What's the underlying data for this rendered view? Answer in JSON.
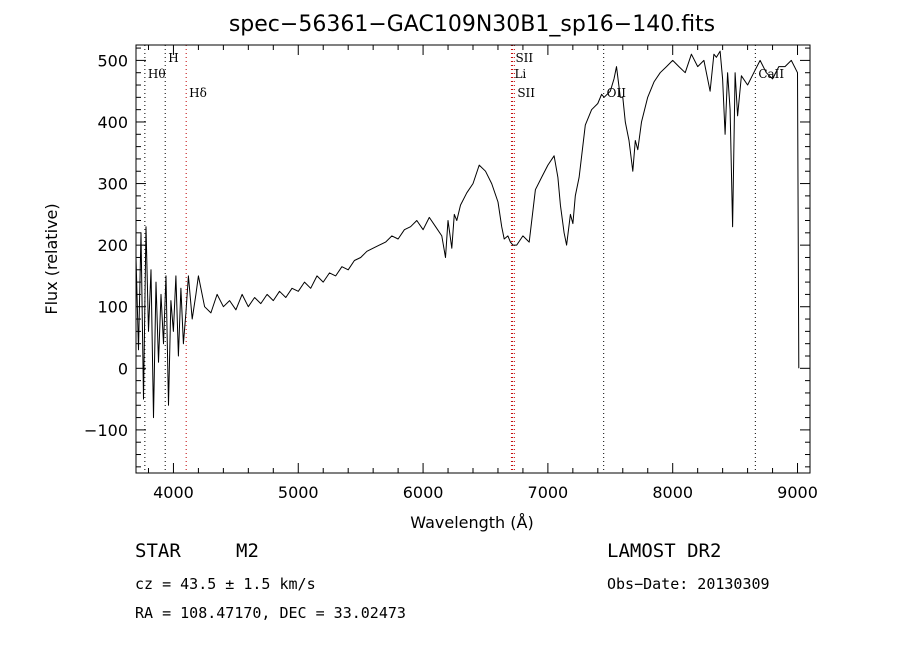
{
  "chart_data": {
    "type": "line",
    "title": "spec−56361−GAC109N30B1_sp16−140.fits",
    "xlabel": "Wavelength (Å)",
    "ylabel": "Flux (relative)",
    "xlim": [
      3700,
      9100
    ],
    "ylim": [
      -170,
      525
    ],
    "x_ticks": [
      {
        "value": 4000,
        "label": "4000"
      },
      {
        "value": 5000,
        "label": "5000"
      },
      {
        "value": 6000,
        "label": "6000"
      },
      {
        "value": 7000,
        "label": "7000"
      },
      {
        "value": 8000,
        "label": "8000"
      },
      {
        "value": 9000,
        "label": "9000"
      }
    ],
    "y_ticks": [
      {
        "value": -100,
        "label": "−100"
      },
      {
        "value": 0,
        "label": "0"
      },
      {
        "value": 100,
        "label": "100"
      },
      {
        "value": 200,
        "label": "200"
      },
      {
        "value": 300,
        "label": "300"
      },
      {
        "value": 400,
        "label": "400"
      },
      {
        "value": 500,
        "label": "500"
      }
    ],
    "grid": false,
    "series": [
      {
        "color": "#000000",
        "x": [
          3700,
          3720,
          3740,
          3760,
          3780,
          3800,
          3820,
          3840,
          3860,
          3880,
          3900,
          3920,
          3940,
          3960,
          3980,
          4000,
          4020,
          4040,
          4060,
          4080,
          4100,
          4120,
          4150,
          4180,
          4200,
          4250,
          4300,
          4350,
          4400,
          4450,
          4500,
          4550,
          4600,
          4650,
          4700,
          4750,
          4800,
          4850,
          4900,
          4950,
          5000,
          5050,
          5100,
          5150,
          5200,
          5250,
          5300,
          5350,
          5400,
          5450,
          5500,
          5550,
          5600,
          5650,
          5700,
          5750,
          5800,
          5850,
          5900,
          5950,
          6000,
          6050,
          6100,
          6150,
          6180,
          6200,
          6230,
          6250,
          6270,
          6300,
          6350,
          6400,
          6450,
          6500,
          6550,
          6600,
          6630,
          6650,
          6680,
          6700,
          6720,
          6750,
          6800,
          6850,
          6900,
          6950,
          7000,
          7050,
          7080,
          7100,
          7130,
          7150,
          7180,
          7200,
          7220,
          7250,
          7300,
          7350,
          7400,
          7430,
          7450,
          7500,
          7530,
          7550,
          7580,
          7600,
          7620,
          7650,
          7680,
          7700,
          7720,
          7750,
          7800,
          7850,
          7900,
          7950,
          8000,
          8050,
          8100,
          8150,
          8200,
          8250,
          8300,
          8330,
          8350,
          8380,
          8400,
          8420,
          8440,
          8460,
          8480,
          8500,
          8520,
          8550,
          8600,
          8650,
          8700,
          8750,
          8800,
          8850,
          8900,
          8950,
          9000,
          9010
        ],
        "y": [
          180,
          30,
          220,
          -50,
          230,
          60,
          160,
          -80,
          140,
          10,
          120,
          40,
          150,
          -60,
          110,
          60,
          150,
          20,
          130,
          40,
          90,
          150,
          80,
          120,
          150,
          100,
          90,
          120,
          100,
          110,
          95,
          120,
          100,
          115,
          105,
          120,
          110,
          125,
          115,
          130,
          125,
          140,
          130,
          150,
          140,
          155,
          150,
          165,
          160,
          175,
          180,
          190,
          195,
          200,
          205,
          215,
          210,
          225,
          230,
          240,
          225,
          245,
          230,
          215,
          180,
          240,
          195,
          250,
          240,
          265,
          285,
          300,
          330,
          320,
          300,
          270,
          230,
          210,
          215,
          205,
          200,
          200,
          215,
          205,
          290,
          310,
          330,
          345,
          310,
          265,
          220,
          200,
          250,
          235,
          280,
          310,
          395,
          420,
          430,
          445,
          440,
          450,
          470,
          490,
          440,
          440,
          400,
          370,
          320,
          370,
          355,
          400,
          440,
          465,
          480,
          490,
          500,
          490,
          480,
          510,
          490,
          500,
          450,
          510,
          505,
          515,
          470,
          380,
          480,
          420,
          230,
          480,
          410,
          475,
          460,
          480,
          500,
          480,
          470,
          490,
          490,
          500,
          480,
          0
        ],
        "values_note": ""
      }
    ],
    "lines": [
      {
        "wavelength": 3771,
        "label": "Hθ",
        "label_row": 1,
        "color": "#000000"
      },
      {
        "wavelength": 3934,
        "label": "H",
        "label_row": 0,
        "color": "#000000"
      },
      {
        "wavelength": 4102,
        "label": "Hδ",
        "label_row": 2,
        "color": "#c00000"
      },
      {
        "wavelength": 6716,
        "label": "SII",
        "label_row": 0,
        "color": "#c00000"
      },
      {
        "wavelength": 6708,
        "label": "Li",
        "label_row": 1,
        "color": "#c00000"
      },
      {
        "wavelength": 6731,
        "label": "SII",
        "label_row": 2,
        "color": "#c00000"
      },
      {
        "wavelength": 7447,
        "label": "OII",
        "label_row": 2,
        "color": "#000000"
      },
      {
        "wavelength": 8662,
        "label": "CaII",
        "label_row": 1,
        "color": "#000000"
      }
    ]
  },
  "info": {
    "object_type": "STAR",
    "subclass": "M2",
    "survey": "LAMOST DR2",
    "cz": "cz = 43.5 ± 1.5 km/s",
    "obs_date": "Obs−Date: 20130309",
    "coords": "RA = 108.47170, DEC =  33.02473"
  }
}
